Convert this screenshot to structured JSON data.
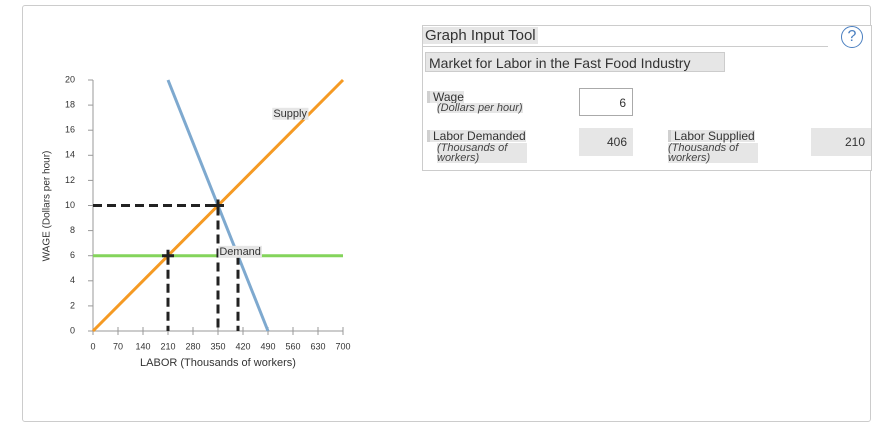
{
  "chart_data": {
    "type": "line",
    "x_label": "LABOR (Thousands of workers)",
    "y_label": "WAGE (Dollars per hour)",
    "xlim": [
      0,
      700
    ],
    "xticks": [
      0,
      70,
      140,
      210,
      280,
      350,
      420,
      490,
      560,
      630,
      700
    ],
    "ylim": [
      0,
      20
    ],
    "yticks": [
      0,
      2,
      4,
      6,
      8,
      10,
      12,
      14,
      16,
      18,
      20
    ],
    "series": [
      {
        "name": "Supply",
        "color": "#f59a23",
        "x": [
          0,
          700
        ],
        "values": [
          0,
          20
        ],
        "label_at": [
          552,
          17.3
        ]
      },
      {
        "name": "Demand",
        "color": "#7ea9cf",
        "x": [
          210,
          490
        ],
        "values": [
          20,
          0
        ],
        "label_at": [
          412,
          6.3
        ]
      },
      {
        "color": "#84d45b",
        "x": [
          0,
          700
        ],
        "values": [
          6,
          6
        ]
      }
    ],
    "guides": [
      {
        "x": [
          0,
          350,
          350
        ],
        "y": [
          10,
          10,
          0
        ]
      },
      {
        "x": [
          210,
          210
        ],
        "y": [
          6,
          0
        ]
      },
      {
        "x": [
          406,
          406
        ],
        "y": [
          6,
          0
        ]
      }
    ],
    "markers": [
      {
        "x": 350,
        "y": 10
      },
      {
        "x": 210,
        "y": 6
      }
    ]
  },
  "input_tool": {
    "title": "Graph Input Tool",
    "help": "?",
    "subtitle": "Market for Labor in the Fast Food Industry",
    "fields": [
      {
        "label": "Wage",
        "unit": "(Dollars per hour)",
        "value": 6
      },
      {
        "label": "Labor Demanded",
        "unit": "(Thousands of workers)",
        "value": 406
      },
      {
        "label": "Labor Supplied",
        "unit": "(Thousands of workers)",
        "value": 210
      }
    ]
  }
}
